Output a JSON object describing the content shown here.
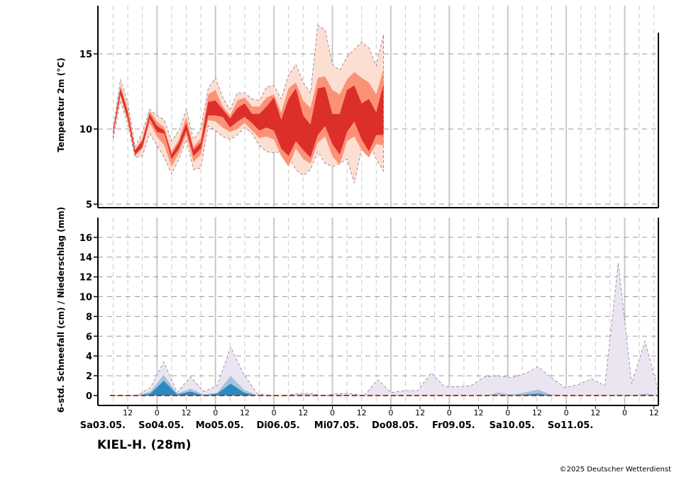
{
  "station": "KIEL-H. (28m)",
  "credit": "©2025 Deutscher Wetterdienst",
  "colors": {
    "temp_outer": "#fdded3",
    "temp_mid": "#fb9278",
    "temp_inner": "#dc2f2a",
    "precip_outer": "#ebe5f2",
    "precip_mid": "#a6c3dd",
    "precip_inner": "#2d8abf",
    "median_line": "#b5341c"
  },
  "chart_data": [
    {
      "type": "area",
      "ylabel": "Temperatur 2m (°C)",
      "yticks": [
        5,
        10,
        15
      ],
      "ylim": [
        5,
        18
      ],
      "grid": true,
      "x_step_hours": 3,
      "x_start": "03.05. 06:00",
      "bands": {
        "outer_high": [
          10.0,
          13.3,
          11.8,
          8.8,
          9.8,
          11.3,
          10.9,
          10.6,
          9.2,
          9.9,
          11.3,
          9.3,
          10.0,
          12.7,
          13.4,
          12.1,
          11.3,
          12.4,
          12.4,
          12.0,
          11.9,
          12.8,
          12.9,
          12.0,
          13.6,
          14.3,
          13.1,
          12.4,
          16.9,
          16.6,
          14.3,
          13.9,
          14.8,
          15.3,
          15.8,
          15.4,
          14.2,
          16.3
        ],
        "mid_high": [
          10.0,
          12.9,
          11.4,
          8.6,
          9.4,
          11.2,
          10.5,
          10.1,
          8.5,
          9.3,
          10.8,
          8.8,
          9.4,
          12.3,
          12.6,
          11.5,
          10.9,
          11.9,
          12.1,
          11.5,
          11.5,
          12.1,
          12.3,
          11.1,
          12.7,
          13.1,
          11.9,
          11.4,
          13.4,
          13.5,
          12.6,
          12.3,
          13.3,
          13.8,
          13.4,
          13.1,
          12.3,
          14.0
        ],
        "inner_high": [
          9.9,
          12.7,
          11.1,
          8.6,
          9.2,
          11.0,
          10.2,
          9.9,
          8.3,
          9.1,
          10.4,
          8.6,
          9.1,
          11.8,
          11.9,
          11.3,
          10.7,
          11.4,
          11.7,
          11.0,
          11.0,
          11.5,
          12.1,
          10.6,
          12.0,
          12.7,
          10.9,
          10.3,
          12.7,
          12.8,
          11.0,
          11.0,
          12.6,
          12.9,
          11.7,
          12.0,
          11.1,
          13.0
        ],
        "inner_low": [
          9.7,
          12.3,
          10.7,
          8.3,
          8.8,
          10.7,
          9.8,
          9.7,
          8.0,
          8.7,
          9.9,
          8.2,
          8.7,
          10.9,
          10.9,
          10.8,
          10.1,
          10.5,
          10.8,
          10.4,
          9.9,
          10.1,
          9.9,
          8.7,
          8.2,
          9.2,
          8.6,
          8.1,
          9.6,
          10.2,
          9.0,
          8.3,
          9.8,
          10.5,
          9.3,
          8.5,
          9.6,
          9.6
        ],
        "mid_low": [
          9.5,
          12.2,
          10.5,
          8.2,
          8.7,
          10.4,
          9.5,
          8.9,
          7.5,
          8.4,
          9.6,
          7.8,
          8.3,
          10.6,
          10.5,
          10.1,
          9.8,
          10.0,
          10.4,
          9.9,
          9.4,
          9.5,
          9.3,
          8.2,
          7.5,
          8.7,
          8.0,
          7.7,
          9.1,
          9.5,
          8.2,
          7.6,
          9.2,
          9.5,
          8.6,
          8.1,
          9.0,
          8.9
        ],
        "outer_low": [
          9.3,
          11.9,
          10.3,
          8.1,
          8.2,
          9.7,
          8.9,
          8.1,
          7.0,
          8.0,
          9.3,
          7.3,
          7.4,
          10.2,
          9.9,
          9.5,
          9.3,
          9.6,
          10.1,
          9.7,
          8.9,
          8.5,
          8.4,
          8.5,
          8.2,
          7.3,
          6.9,
          7.3,
          8.5,
          7.7,
          7.5,
          7.7,
          8.0,
          6.4,
          8.7,
          9.2,
          8.0,
          7.2
        ]
      }
    },
    {
      "type": "area",
      "ylabel": "6-std. Schneefall (cm) / Niederschlag (mm)",
      "yticks": [
        0,
        2,
        4,
        6,
        8,
        10,
        12,
        14,
        16
      ],
      "ylim": [
        -1,
        18
      ],
      "grid": true,
      "x_step_hours": 3,
      "x_start": "03.05. 06:00",
      "bands": {
        "outer": [
          0,
          0,
          0,
          0.8,
          3.4,
          0.3,
          1.9,
          0.4,
          1.0,
          4.9,
          2.1,
          0.2,
          0,
          0,
          0.2,
          0.2,
          0,
          0.2,
          0.2,
          0,
          1.6,
          0.3,
          0.5,
          0.5,
          2.3,
          0.9,
          0.9,
          1.0,
          1.9,
          2.0,
          1.8,
          2.2,
          2.9,
          1.8,
          0.8,
          1.1,
          1.7,
          1.0,
          13.4,
          1.2,
          5.5,
          0.4
        ],
        "mid": [
          0,
          0,
          0,
          0.4,
          2.1,
          0.2,
          0.7,
          0.1,
          0.3,
          2.0,
          0.6,
          0,
          0,
          0,
          0.1,
          0.1,
          0,
          0,
          0,
          0,
          0,
          0,
          0,
          0,
          0,
          0,
          0,
          0,
          0,
          0.3,
          0.1,
          0.3,
          0.6,
          0.1,
          0,
          0,
          0,
          0,
          0.1,
          0,
          0.2,
          0
        ],
        "inner": [
          0,
          0,
          0,
          0.2,
          1.5,
          0.1,
          0.4,
          0,
          0.2,
          1.2,
          0.3,
          0,
          0,
          0,
          0,
          0,
          0,
          0,
          0,
          0,
          0,
          0,
          0,
          0,
          0,
          0,
          0,
          0,
          0,
          0,
          0,
          0.1,
          0.2,
          0,
          0,
          0,
          0,
          0,
          0,
          0,
          0,
          0
        ],
        "median": [
          0,
          0,
          0,
          0,
          0,
          0,
          0,
          0,
          0,
          0,
          0,
          0,
          0,
          0,
          0,
          0,
          0,
          0,
          0,
          0,
          0,
          0,
          0,
          0,
          0,
          0,
          0,
          0,
          0,
          0,
          0,
          0,
          0,
          0,
          0,
          0,
          0,
          0,
          0,
          0,
          0,
          0
        ]
      }
    }
  ],
  "x_axis": {
    "hour_ticks": [
      "12",
      "0",
      "12",
      "0",
      "12",
      "0",
      "12",
      "0",
      "12",
      "0",
      "12",
      "0",
      "12",
      "0",
      "12",
      "0",
      "12",
      "0",
      "12",
      "0",
      "12",
      "0",
      "12",
      "0",
      "12",
      "0",
      "12",
      "0"
    ],
    "day_labels": [
      "Sa03.05.",
      "So04.05.",
      "Mo05.05.",
      "Di06.05.",
      "Mi07.05.",
      "Do08.05.",
      "Fr09.05.",
      "Sa10.05.",
      "So11.05."
    ]
  }
}
